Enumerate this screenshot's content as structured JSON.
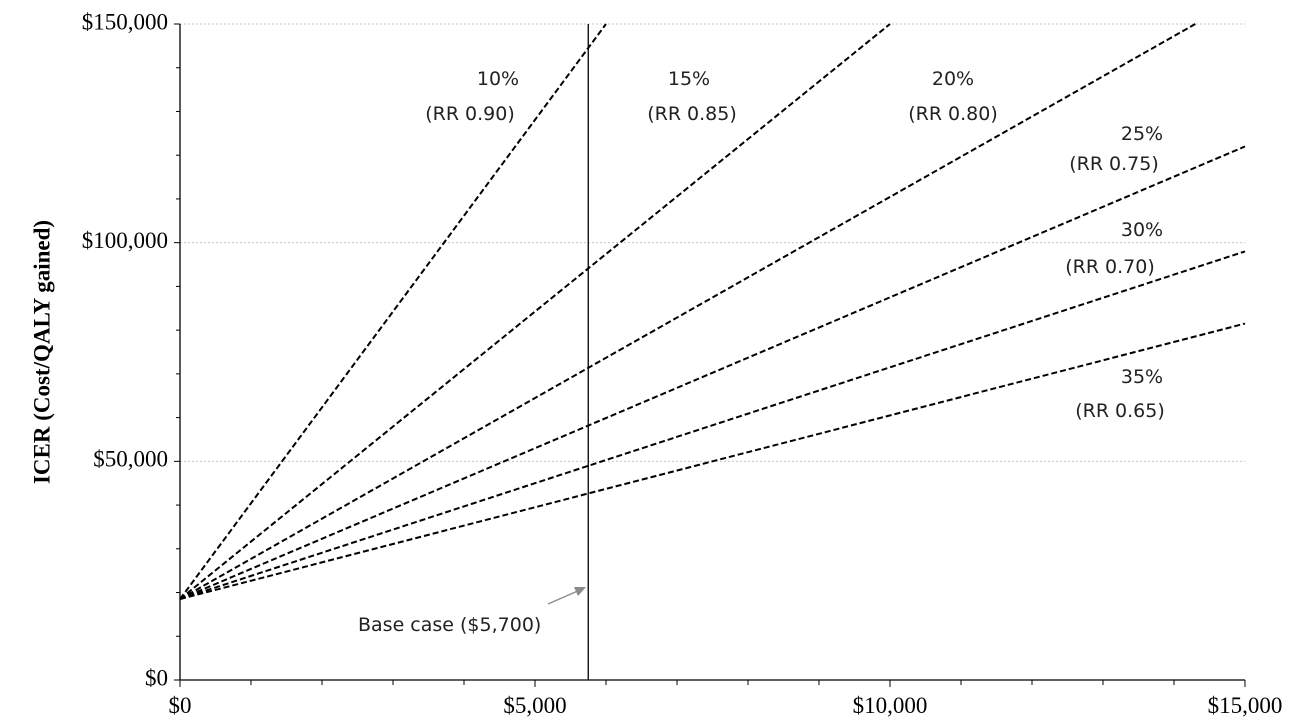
{
  "chart_data": {
    "type": "line",
    "title": "",
    "xlabel": "",
    "ylabel": "ICER (Cost/QALY gained)",
    "xlim": [
      0,
      15000
    ],
    "ylim": [
      0,
      150000
    ],
    "x_ticks": [
      0,
      5000,
      10000,
      15000
    ],
    "x_tick_labels": [
      "$0",
      "$5,000",
      "$10,000",
      "$15,000"
    ],
    "y_ticks": [
      0,
      50000,
      100000,
      150000
    ],
    "y_tick_labels": [
      "$0",
      "$50,000",
      "$100,000",
      "$150,000"
    ],
    "grid": "horizontal dotted",
    "line_style": "dashed",
    "line_color": "#000000",
    "series": [
      {
        "name": "10%",
        "sub": "(RR 0.90)",
        "x": [
          0,
          6000
        ],
        "y": [
          18500,
          150000
        ]
      },
      {
        "name": "15%",
        "sub": "(RR 0.85)",
        "x": [
          0,
          10000
        ],
        "y": [
          18500,
          150000
        ]
      },
      {
        "name": "20%",
        "sub": "(RR 0.80)",
        "x": [
          0,
          14300
        ],
        "y": [
          18500,
          150000
        ]
      },
      {
        "name": "25%",
        "sub": "(RR 0.75)",
        "x": [
          0,
          15000
        ],
        "y": [
          18500,
          122000
        ]
      },
      {
        "name": "30%",
        "sub": "(RR 0.70)",
        "x": [
          0,
          15000
        ],
        "y": [
          18500,
          98000
        ]
      },
      {
        "name": "35%",
        "sub": "(RR 0.65)",
        "x": [
          0,
          15000
        ],
        "y": [
          18500,
          81500
        ]
      }
    ],
    "annotations": [
      {
        "text": "Base case ($5,700)",
        "x": 5750,
        "type": "vertical-line"
      }
    ]
  }
}
